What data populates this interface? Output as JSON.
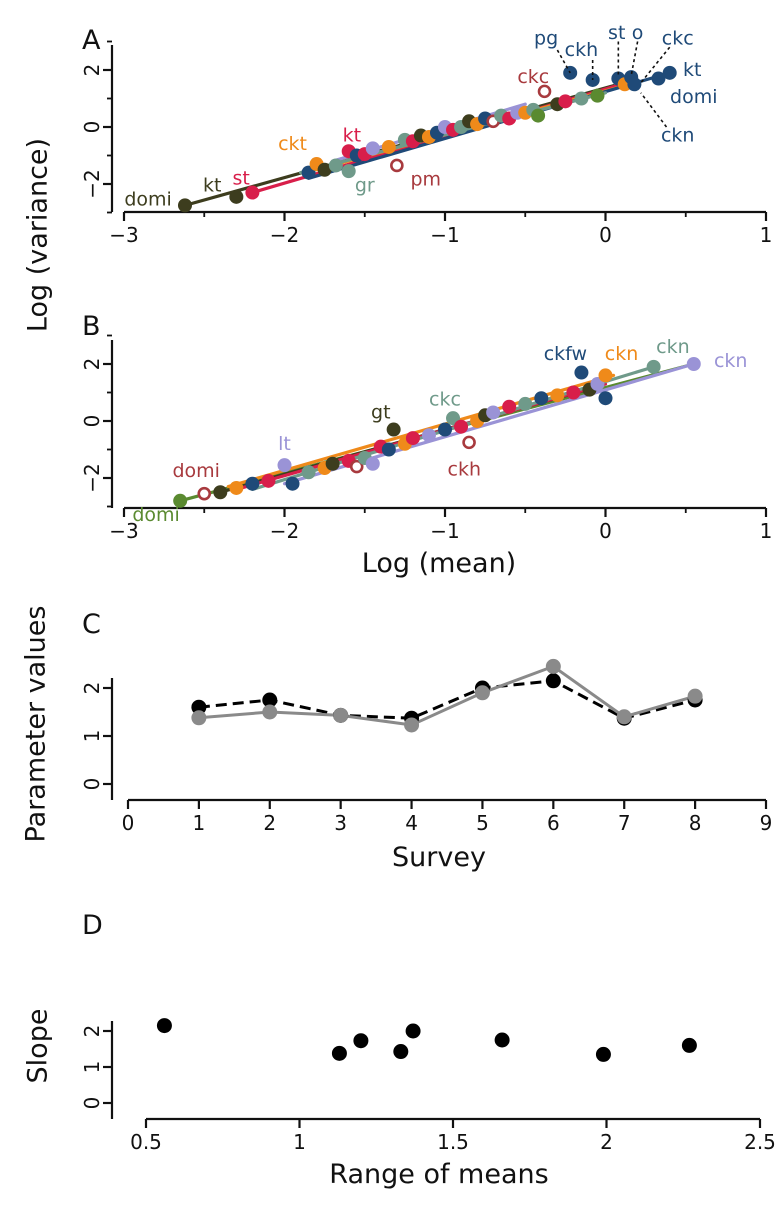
{
  "colors": {
    "dark_olive": "#3d3d1e",
    "crimson": "#d81e4a",
    "orange": "#ef8a1a",
    "navy": "#1f4a78",
    "teal": "#6f9a8a",
    "lavender": "#9a93d6",
    "brown_red": "#a83a3e",
    "green": "#5a8a30",
    "black": "#000000",
    "gray": "#8a8a8a"
  },
  "chart_data": [
    {
      "panel": "A",
      "type": "scatter",
      "xlim": [
        -3,
        1
      ],
      "ylim": [
        -3,
        3
      ],
      "xticks": [
        "−3",
        "−2",
        "−1",
        "0",
        "1"
      ],
      "yticks": [
        "−2",
        "0",
        "2"
      ],
      "ylabel": "Log (variance)",
      "xlabel": "",
      "lines": [
        {
          "color": "dark_olive",
          "x": [
            -2.62,
            0.05
          ],
          "y": [
            -2.75,
            1.45
          ]
        },
        {
          "color": "crimson",
          "x": [
            -2.2,
            0.1
          ],
          "y": [
            -2.3,
            1.5
          ]
        },
        {
          "color": "orange",
          "x": [
            -1.8,
            0.15
          ],
          "y": [
            -1.5,
            1.5
          ]
        },
        {
          "color": "navy",
          "x": [
            -1.85,
            0.4
          ],
          "y": [
            -1.8,
            1.9
          ]
        },
        {
          "color": "teal",
          "x": [
            -1.9,
            0.0
          ],
          "y": [
            -1.6,
            1.2
          ]
        },
        {
          "color": "lavender",
          "x": [
            -1.7,
            -0.5
          ],
          "y": [
            -1.2,
            0.8
          ]
        }
      ],
      "points": [
        {
          "x": -2.62,
          "y": -2.75,
          "color": "dark_olive"
        },
        {
          "x": -2.3,
          "y": -2.45,
          "color": "dark_olive"
        },
        {
          "x": -2.2,
          "y": -2.3,
          "color": "crimson"
        },
        {
          "x": -1.85,
          "y": -1.6,
          "color": "navy"
        },
        {
          "x": -1.8,
          "y": -1.3,
          "color": "orange"
        },
        {
          "x": -1.75,
          "y": -1.5,
          "color": "dark_olive"
        },
        {
          "x": -1.68,
          "y": -1.35,
          "color": "teal"
        },
        {
          "x": -1.6,
          "y": -1.55,
          "color": "teal"
        },
        {
          "x": -1.6,
          "y": -0.85,
          "color": "crimson"
        },
        {
          "x": -1.55,
          "y": -1.0,
          "color": "navy"
        },
        {
          "x": -1.5,
          "y": -0.95,
          "color": "crimson"
        },
        {
          "x": -1.45,
          "y": -0.75,
          "color": "lavender"
        },
        {
          "x": -1.35,
          "y": -0.7,
          "color": "orange"
        },
        {
          "x": -1.3,
          "y": -1.35,
          "color": "brown_red",
          "open": true
        },
        {
          "x": -1.25,
          "y": -0.45,
          "color": "teal"
        },
        {
          "x": -1.2,
          "y": -0.5,
          "color": "crimson"
        },
        {
          "x": -1.15,
          "y": -0.3,
          "color": "dark_olive"
        },
        {
          "x": -1.1,
          "y": -0.35,
          "color": "orange"
        },
        {
          "x": -1.05,
          "y": -0.2,
          "color": "navy"
        },
        {
          "x": -1.0,
          "y": 0.0,
          "color": "lavender"
        },
        {
          "x": -0.95,
          "y": -0.1,
          "color": "crimson"
        },
        {
          "x": -0.9,
          "y": 0.0,
          "color": "teal"
        },
        {
          "x": -0.85,
          "y": 0.2,
          "color": "dark_olive"
        },
        {
          "x": -0.8,
          "y": 0.1,
          "color": "orange"
        },
        {
          "x": -0.75,
          "y": 0.3,
          "color": "navy"
        },
        {
          "x": -0.7,
          "y": 0.2,
          "color": "brown_red",
          "open": true
        },
        {
          "x": -0.65,
          "y": 0.4,
          "color": "teal"
        },
        {
          "x": -0.6,
          "y": 0.3,
          "color": "crimson"
        },
        {
          "x": -0.55,
          "y": 0.5,
          "color": "lavender"
        },
        {
          "x": -0.5,
          "y": 0.5,
          "color": "orange"
        },
        {
          "x": -0.45,
          "y": 0.6,
          "color": "teal"
        },
        {
          "x": -0.42,
          "y": 0.4,
          "color": "green"
        },
        {
          "x": -0.38,
          "y": 1.25,
          "color": "brown_red",
          "open": true
        },
        {
          "x": -0.3,
          "y": 0.8,
          "color": "dark_olive"
        },
        {
          "x": -0.25,
          "y": 0.9,
          "color": "crimson"
        },
        {
          "x": -0.22,
          "y": 1.9,
          "color": "navy"
        },
        {
          "x": -0.15,
          "y": 1.0,
          "color": "teal"
        },
        {
          "x": -0.08,
          "y": 1.65,
          "color": "navy"
        },
        {
          "x": -0.05,
          "y": 1.1,
          "color": "green"
        },
        {
          "x": 0.08,
          "y": 1.7,
          "color": "navy"
        },
        {
          "x": 0.12,
          "y": 1.5,
          "color": "orange"
        },
        {
          "x": 0.16,
          "y": 1.75,
          "color": "navy"
        },
        {
          "x": 0.18,
          "y": 1.5,
          "color": "navy"
        },
        {
          "x": 0.33,
          "y": 1.7,
          "color": "navy"
        },
        {
          "x": 0.4,
          "y": 1.9,
          "color": "navy"
        }
      ],
      "labels": [
        {
          "text": "domi",
          "x": -2.85,
          "y": -2.55,
          "color": "dark_olive"
        },
        {
          "text": "kt",
          "x": -2.45,
          "y": -2.05,
          "color": "dark_olive"
        },
        {
          "text": "st",
          "x": -2.27,
          "y": -1.8,
          "color": "crimson"
        },
        {
          "text": "ckt",
          "x": -1.95,
          "y": -0.6,
          "color": "orange"
        },
        {
          "text": "kt",
          "x": -1.58,
          "y": -0.3,
          "color": "crimson"
        },
        {
          "text": "gr",
          "x": -1.5,
          "y": -2.05,
          "color": "teal"
        },
        {
          "text": "pm",
          "x": -1.12,
          "y": -1.85,
          "color": "brown_red"
        },
        {
          "text": "ckc",
          "x": -0.45,
          "y": 1.75,
          "color": "brown_red"
        },
        {
          "text": "pg",
          "x": -0.37,
          "y": 3.1,
          "color": "navy"
        },
        {
          "text": "ckh",
          "x": -0.15,
          "y": 2.7,
          "color": "navy"
        },
        {
          "text": "st",
          "x": 0.07,
          "y": 3.3,
          "color": "navy"
        },
        {
          "text": "o",
          "x": 0.2,
          "y": 3.3,
          "color": "navy"
        },
        {
          "text": "ckc",
          "x": 0.45,
          "y": 3.1,
          "color": "navy"
        },
        {
          "text": "kt",
          "x": 0.54,
          "y": 2.0,
          "color": "navy"
        },
        {
          "text": "domi",
          "x": 0.55,
          "y": 1.05,
          "color": "navy"
        },
        {
          "text": "ckn",
          "x": 0.45,
          "y": -0.3,
          "color": "navy"
        }
      ]
    },
    {
      "panel": "B",
      "type": "scatter",
      "xlim": [
        -3,
        1
      ],
      "ylim": [
        -3,
        3
      ],
      "xticks": [
        "−3",
        "−2",
        "−1",
        "0",
        "1"
      ],
      "yticks": [
        "−2",
        "0",
        "2"
      ],
      "xlabel": "Log (mean)",
      "lines": [
        {
          "color": "green",
          "x": [
            -2.65,
            0.55
          ],
          "y": [
            -2.8,
            2.0
          ]
        },
        {
          "color": "dark_olive",
          "x": [
            -2.4,
            -0.05
          ],
          "y": [
            -2.5,
            1.2
          ]
        },
        {
          "color": "crimson",
          "x": [
            -2.3,
            0.0
          ],
          "y": [
            -2.4,
            1.3
          ]
        },
        {
          "color": "orange",
          "x": [
            -2.35,
            0.05
          ],
          "y": [
            -2.3,
            1.6
          ]
        },
        {
          "color": "lavender",
          "x": [
            -2.0,
            0.55
          ],
          "y": [
            -2.2,
            2.0
          ]
        },
        {
          "color": "teal",
          "x": [
            -2.2,
            0.3
          ],
          "y": [
            -2.4,
            1.9
          ]
        }
      ],
      "points": [
        {
          "x": -2.65,
          "y": -2.8,
          "color": "green"
        },
        {
          "x": -2.5,
          "y": -2.55,
          "color": "brown_red",
          "open": true
        },
        {
          "x": -2.4,
          "y": -2.5,
          "color": "dark_olive"
        },
        {
          "x": -2.3,
          "y": -2.35,
          "color": "orange"
        },
        {
          "x": -2.2,
          "y": -2.2,
          "color": "navy"
        },
        {
          "x": -2.1,
          "y": -2.1,
          "color": "crimson"
        },
        {
          "x": -2.0,
          "y": -1.55,
          "color": "lavender"
        },
        {
          "x": -1.95,
          "y": -2.2,
          "color": "navy"
        },
        {
          "x": -1.85,
          "y": -1.8,
          "color": "teal"
        },
        {
          "x": -1.75,
          "y": -1.65,
          "color": "orange"
        },
        {
          "x": -1.7,
          "y": -1.5,
          "color": "dark_olive"
        },
        {
          "x": -1.6,
          "y": -1.4,
          "color": "crimson"
        },
        {
          "x": -1.55,
          "y": -1.6,
          "color": "brown_red",
          "open": true
        },
        {
          "x": -1.5,
          "y": -1.3,
          "color": "teal"
        },
        {
          "x": -1.45,
          "y": -1.5,
          "color": "lavender"
        },
        {
          "x": -1.4,
          "y": -0.9,
          "color": "crimson"
        },
        {
          "x": -1.35,
          "y": -1.0,
          "color": "navy"
        },
        {
          "x": -1.32,
          "y": -0.3,
          "color": "dark_olive"
        },
        {
          "x": -1.25,
          "y": -0.8,
          "color": "orange"
        },
        {
          "x": -1.2,
          "y": -0.6,
          "color": "crimson"
        },
        {
          "x": -1.1,
          "y": -0.5,
          "color": "lavender"
        },
        {
          "x": -1.0,
          "y": -0.3,
          "color": "navy"
        },
        {
          "x": -0.95,
          "y": 0.1,
          "color": "teal"
        },
        {
          "x": -0.9,
          "y": -0.2,
          "color": "crimson"
        },
        {
          "x": -0.85,
          "y": -0.75,
          "color": "brown_red",
          "open": true
        },
        {
          "x": -0.8,
          "y": 0.0,
          "color": "orange"
        },
        {
          "x": -0.75,
          "y": 0.2,
          "color": "dark_olive"
        },
        {
          "x": -0.7,
          "y": 0.3,
          "color": "lavender"
        },
        {
          "x": -0.6,
          "y": 0.5,
          "color": "crimson"
        },
        {
          "x": -0.5,
          "y": 0.6,
          "color": "teal"
        },
        {
          "x": -0.4,
          "y": 0.8,
          "color": "navy"
        },
        {
          "x": -0.3,
          "y": 0.9,
          "color": "orange"
        },
        {
          "x": -0.2,
          "y": 1.0,
          "color": "crimson"
        },
        {
          "x": -0.15,
          "y": 1.7,
          "color": "navy"
        },
        {
          "x": -0.1,
          "y": 1.1,
          "color": "dark_olive"
        },
        {
          "x": -0.05,
          "y": 1.3,
          "color": "lavender"
        },
        {
          "x": 0.0,
          "y": 1.6,
          "color": "orange"
        },
        {
          "x": 0.0,
          "y": 0.8,
          "color": "navy"
        },
        {
          "x": 0.3,
          "y": 1.9,
          "color": "teal"
        },
        {
          "x": 0.55,
          "y": 2.0,
          "color": "lavender"
        }
      ],
      "labels": [
        {
          "text": "domi",
          "x": -2.8,
          "y": -3.3,
          "color": "green"
        },
        {
          "text": "domi",
          "x": -2.55,
          "y": -1.75,
          "color": "brown_red"
        },
        {
          "text": "lt",
          "x": -2.0,
          "y": -0.8,
          "color": "lavender"
        },
        {
          "text": "gt",
          "x": -1.4,
          "y": 0.3,
          "color": "dark_olive"
        },
        {
          "text": "ckc",
          "x": -1.0,
          "y": 0.75,
          "color": "teal"
        },
        {
          "text": "ckh",
          "x": -0.88,
          "y": -1.7,
          "color": "brown_red"
        },
        {
          "text": "ckfw",
          "x": -0.25,
          "y": 2.35,
          "color": "navy"
        },
        {
          "text": "ckn",
          "x": 0.1,
          "y": 2.35,
          "color": "orange"
        },
        {
          "text": "ckn",
          "x": 0.42,
          "y": 2.6,
          "color": "teal"
        },
        {
          "text": "ckn",
          "x": 0.78,
          "y": 2.1,
          "color": "lavender"
        }
      ]
    },
    {
      "panel": "C",
      "type": "line",
      "xlim": [
        0,
        9
      ],
      "ylim": [
        0,
        3
      ],
      "xticks": [
        "0",
        "1",
        "2",
        "3",
        "4",
        "5",
        "6",
        "7",
        "8",
        "9"
      ],
      "yticks": [
        "0",
        "1",
        "2"
      ],
      "xlabel": "Survey",
      "ylabel": "Parameter values",
      "series": [
        {
          "color": "black",
          "dashed": true,
          "x": [
            1,
            2,
            3,
            4,
            5,
            6,
            7,
            8
          ],
          "values": [
            1.6,
            1.75,
            1.43,
            1.37,
            2.0,
            2.15,
            1.37,
            1.75
          ]
        },
        {
          "color": "gray",
          "dashed": false,
          "x": [
            1,
            2,
            3,
            4,
            5,
            6,
            7,
            8
          ],
          "values": [
            1.38,
            1.5,
            1.43,
            1.23,
            1.9,
            2.45,
            1.4,
            1.83
          ]
        }
      ]
    },
    {
      "panel": "D",
      "type": "scatter",
      "xlim": [
        0.5,
        2.5
      ],
      "ylim": [
        0,
        2.5
      ],
      "xticks": [
        "0.5",
        "1",
        "1.5",
        "2",
        "2.5"
      ],
      "yticks": [
        "0",
        "1",
        "2"
      ],
      "xlabel": "Range of means",
      "ylabel": "Slope",
      "points": [
        {
          "x": 0.56,
          "y": 2.15
        },
        {
          "x": 1.13,
          "y": 1.38
        },
        {
          "x": 1.2,
          "y": 1.73
        },
        {
          "x": 1.33,
          "y": 1.43
        },
        {
          "x": 1.37,
          "y": 2.0
        },
        {
          "x": 1.66,
          "y": 1.75
        },
        {
          "x": 1.99,
          "y": 1.35
        },
        {
          "x": 2.27,
          "y": 1.6
        }
      ]
    }
  ]
}
